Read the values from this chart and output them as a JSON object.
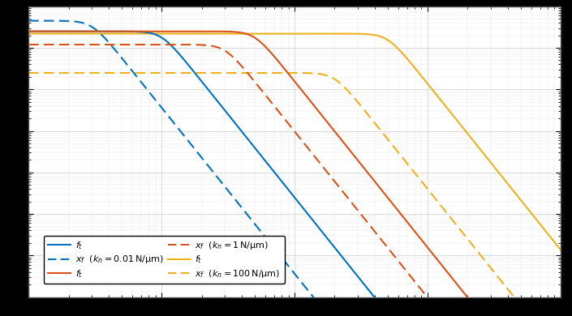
{
  "colors": {
    "blue": "#0072BD",
    "orange": "#D95319",
    "yellow": "#EDB120"
  },
  "freq_min": 0.1,
  "freq_max": 1000,
  "ylim_min": 1e-10,
  "ylim_max": 0.001,
  "background_color": "#ffffff",
  "outer_background": "#000000",
  "grid_color": "#cccccc",
  "lw": 1.5,
  "legend": {
    "row1_solid": "$f_t$",
    "row1_dashed": "$x_f$",
    "row1_kn": "(k_n = 0.01 N/\\mu m)",
    "row2_solid": "$f_t$",
    "row2_dashed": "$x_f$",
    "row2_kn": "(k_n = 1 N/\\mu m)",
    "row3_solid": "$f_t$",
    "row3_dashed": "$x_f$",
    "row3_kn": "(k_n = 100 N/\\mu m)"
  }
}
